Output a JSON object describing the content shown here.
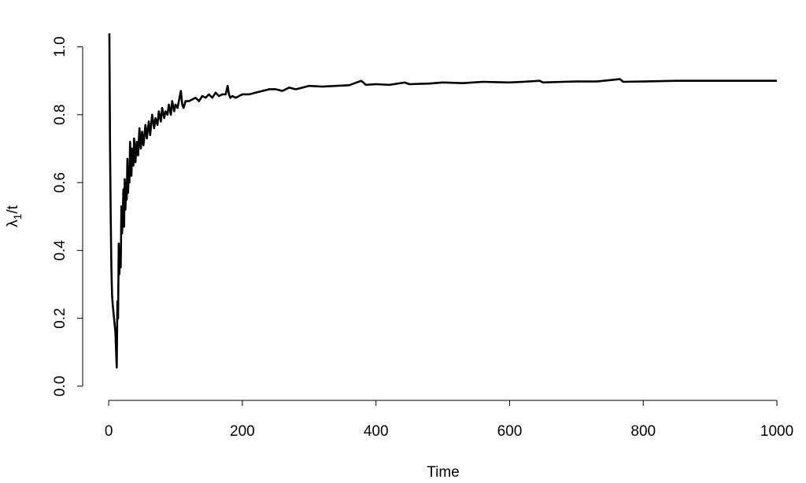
{
  "chart_data": {
    "type": "line",
    "xlabel": "Time",
    "ylabel": [
      "λ",
      "1",
      "/t"
    ],
    "x": [
      1,
      2,
      3,
      4,
      5,
      6,
      8,
      10,
      12,
      13,
      14,
      15,
      16,
      17,
      18,
      19,
      20,
      21,
      22,
      23,
      24,
      25,
      26,
      27,
      28,
      29,
      30,
      31,
      32,
      34,
      35,
      37,
      38,
      40,
      42,
      44,
      46,
      48,
      50,
      52,
      55,
      57,
      60,
      62,
      65,
      68,
      70,
      73,
      75,
      78,
      80,
      83,
      85,
      88,
      90,
      93,
      95,
      98,
      100,
      103,
      105,
      108,
      110,
      112,
      115,
      120,
      125,
      130,
      135,
      140,
      145,
      150,
      155,
      160,
      165,
      170,
      175,
      178,
      180,
      182,
      185,
      190,
      195,
      200,
      210,
      220,
      230,
      240,
      250,
      260,
      270,
      280,
      290,
      300,
      320,
      340,
      360,
      378,
      385,
      400,
      420,
      443,
      450,
      480,
      500,
      530,
      560,
      600,
      620,
      645,
      650,
      680,
      700,
      730,
      765,
      770,
      800,
      850,
      900,
      950,
      1000
    ],
    "series": [
      {
        "color": "#000000",
        "values": [
          1.04,
          0.7,
          0.5,
          0.35,
          0.27,
          0.24,
          0.2,
          0.16,
          0.055,
          0.25,
          0.2,
          0.42,
          0.33,
          0.4,
          0.35,
          0.53,
          0.45,
          0.5,
          0.58,
          0.47,
          0.61,
          0.52,
          0.6,
          0.55,
          0.67,
          0.57,
          0.64,
          0.6,
          0.72,
          0.62,
          0.7,
          0.65,
          0.73,
          0.66,
          0.72,
          0.68,
          0.76,
          0.7,
          0.75,
          0.71,
          0.77,
          0.73,
          0.78,
          0.74,
          0.8,
          0.76,
          0.79,
          0.77,
          0.81,
          0.78,
          0.82,
          0.79,
          0.81,
          0.8,
          0.83,
          0.8,
          0.84,
          0.81,
          0.83,
          0.82,
          0.84,
          0.87,
          0.83,
          0.82,
          0.84,
          0.84,
          0.845,
          0.85,
          0.84,
          0.855,
          0.85,
          0.86,
          0.85,
          0.865,
          0.855,
          0.86,
          0.86,
          0.885,
          0.86,
          0.85,
          0.855,
          0.85,
          0.855,
          0.86,
          0.86,
          0.865,
          0.87,
          0.875,
          0.875,
          0.87,
          0.88,
          0.875,
          0.88,
          0.885,
          0.883,
          0.885,
          0.887,
          0.9,
          0.888,
          0.89,
          0.888,
          0.895,
          0.89,
          0.892,
          0.895,
          0.893,
          0.897,
          0.895,
          0.897,
          0.9,
          0.895,
          0.897,
          0.898,
          0.898,
          0.905,
          0.897,
          0.898,
          0.9,
          0.9,
          0.9,
          0.9
        ]
      }
    ],
    "xlim": [
      -39,
      1040
    ],
    "ylim": [
      -0.042,
      1.05
    ],
    "xticks": [
      0,
      200,
      400,
      600,
      800,
      1000
    ],
    "yticks": [
      {
        "value": 0,
        "label": "0.0"
      },
      0.2,
      0.4,
      0.6,
      0.8,
      {
        "value": 1,
        "label": "1.0"
      }
    ]
  }
}
